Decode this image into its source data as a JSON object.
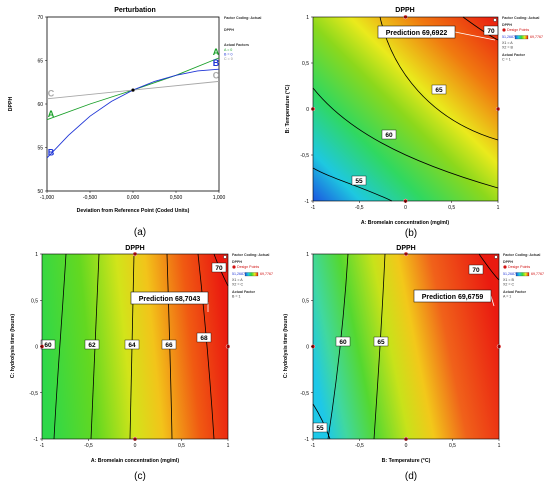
{
  "colors": {
    "series_A": "#1aa02a",
    "series_B": "#1f35d6",
    "series_C": "#a8a8a8",
    "contour": "#000000",
    "design_point": "#d01010",
    "prediction_flag": "#d01010"
  },
  "chart_data": [
    {
      "type": "line",
      "title": "Perturbation",
      "panel_label": "(a)",
      "xlabel": "Deviation from Reference Point (Coded Units)",
      "ylabel": "DPPH",
      "xlim": [
        -1,
        1
      ],
      "ylim": [
        50,
        70
      ],
      "x_ticks": [
        "-1,000",
        "-0,500",
        "0,000",
        "0,500",
        "1,000"
      ],
      "y_ticks": [
        "50",
        "55",
        "60",
        "65",
        "70"
      ],
      "series": [
        {
          "name": "A",
          "color_key": "series_A",
          "x": [
            -1,
            -0.5,
            0,
            0.5,
            1
          ],
          "y": [
            58.2,
            60.0,
            61.6,
            63.3,
            65.3
          ]
        },
        {
          "name": "B",
          "color_key": "series_B",
          "x": [
            -1,
            -0.75,
            -0.5,
            -0.25,
            0,
            0.25,
            0.5,
            0.75,
            1
          ],
          "y": [
            53.8,
            56.4,
            58.6,
            60.3,
            61.6,
            62.6,
            63.3,
            63.8,
            64.0
          ]
        },
        {
          "name": "C",
          "color_key": "series_C",
          "x": [
            -1,
            0,
            1
          ],
          "y": [
            60.6,
            61.6,
            62.6
          ]
        }
      ],
      "reference_point": {
        "x": 0,
        "y": 61.6
      },
      "legend": {
        "title": "Factor Coding: Actual",
        "response": "DPPH",
        "factors_title": "Actual Factors",
        "items": [
          "A = 0",
          "B = 0",
          "C = 0"
        ]
      }
    },
    {
      "type": "contour",
      "title": "DPPH",
      "panel_label": "(b)",
      "xlabel": "A: Bromelain concentration (mg/ml)",
      "ylabel": "B: Temperature (°C)",
      "xlim": [
        -1,
        1
      ],
      "ylim": [
        -1,
        1
      ],
      "x_ticks": [
        "-1",
        "-0,5",
        "0",
        "0,5",
        "1"
      ],
      "y_ticks": [
        "-1",
        "-0,5",
        "0",
        "0,5",
        "1"
      ],
      "min_value": 51.2687,
      "max_value": 69.7767,
      "contour_labels": [
        "55",
        "60",
        "65",
        "70"
      ],
      "prediction": {
        "label": "Prediction",
        "value": "69,6922",
        "x": 1,
        "y": 1
      },
      "design_points": [
        {
          "x": 0,
          "y": 1
        },
        {
          "x": -1,
          "y": 0
        },
        {
          "x": 1,
          "y": 0
        },
        {
          "x": 0,
          "y": -1
        }
      ],
      "legend": {
        "title": "Factor Coding: Actual",
        "response": "DPPH",
        "design_points_label": "Design Points",
        "range_min": "51,2687",
        "range_max": "69,7767",
        "x1": "X1 = A",
        "x2": "X2 = B",
        "factor_title": "Actual Factor",
        "factor": "C = 1"
      }
    },
    {
      "type": "contour",
      "title": "DPPH",
      "panel_label": "(c)",
      "xlabel": "A: Bromelain concentration (mg/ml)",
      "ylabel": "C: hydrolysis time (hours)",
      "xlim": [
        -1,
        1
      ],
      "ylim": [
        -1,
        1
      ],
      "x_ticks": [
        "-1",
        "-0,5",
        "0",
        "0,5",
        "1"
      ],
      "y_ticks": [
        "-1",
        "-0,5",
        "0",
        "0,5",
        "1"
      ],
      "min_value": 51.2687,
      "max_value": 69.7767,
      "contour_labels": [
        "60",
        "62",
        "64",
        "66",
        "68",
        "70"
      ],
      "prediction": {
        "label": "Prediction",
        "value": "68,7043",
        "x": 1,
        "y": 1
      },
      "design_points": [
        {
          "x": 0,
          "y": 1
        },
        {
          "x": -1,
          "y": 0
        },
        {
          "x": 1,
          "y": 0
        },
        {
          "x": 0,
          "y": -1
        }
      ],
      "legend": {
        "title": "Factor Coding: Actual",
        "response": "DPPH",
        "design_points_label": "Design Points",
        "range_min": "51,2687",
        "range_max": "69,7767",
        "x1": "X1 = A",
        "x2": "X2 = C",
        "factor_title": "Actual Factor",
        "factor": "B = 1"
      }
    },
    {
      "type": "contour",
      "title": "DPPH",
      "panel_label": "(d)",
      "xlabel": "B: Temperature (°C)",
      "ylabel": "C: hydrolysis time (hours)",
      "xlim": [
        -1,
        1
      ],
      "ylim": [
        -1,
        1
      ],
      "x_ticks": [
        "-1",
        "-0,5",
        "0",
        "0,5",
        "1"
      ],
      "y_ticks": [
        "-1",
        "-0,5",
        "0",
        "0,5",
        "1"
      ],
      "min_value": 51.2687,
      "max_value": 69.7767,
      "contour_labels": [
        "55",
        "60",
        "65",
        "70"
      ],
      "prediction": {
        "label": "Prediction",
        "value": "69,6759",
        "x": 1,
        "y": 1
      },
      "design_points": [
        {
          "x": 0,
          "y": 1
        },
        {
          "x": -1,
          "y": 0
        },
        {
          "x": 1,
          "y": 0
        },
        {
          "x": 0,
          "y": -1
        }
      ],
      "legend": {
        "title": "Factor Coding: Actual",
        "response": "DPPH",
        "design_points_label": "Design Points",
        "range_min": "51,2687",
        "range_max": "69,7767",
        "x1": "X1 = B",
        "x2": "X2 = C",
        "factor_title": "Actual Factor",
        "factor": "A = 1"
      }
    }
  ]
}
